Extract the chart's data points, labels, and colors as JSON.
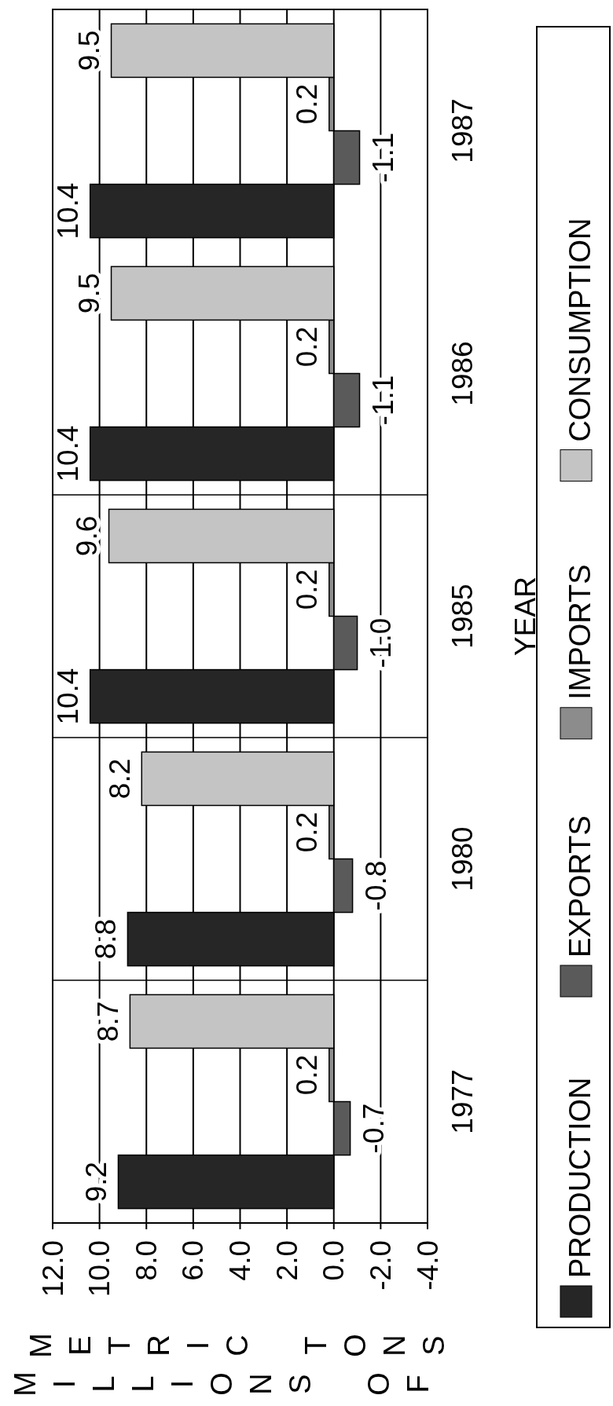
{
  "chart_data": {
    "type": "bar",
    "orientation": "horizontal",
    "ylabel": "YEAR",
    "xlabel": "MILLIONS OF METRIC TONS",
    "categories": [
      "1987",
      "1986",
      "1985",
      "1980",
      "1977"
    ],
    "series": [
      {
        "name": "PRODUCTION",
        "color": "#262626",
        "values": [
          10.4,
          10.4,
          10.4,
          8.8,
          9.2
        ],
        "value_labels": [
          "10.4",
          "10.4",
          "10.4",
          "8.8",
          "9.2"
        ]
      },
      {
        "name": "EXPORTS",
        "color": "#5a5a5a",
        "values": [
          -1.1,
          -1.1,
          -1.0,
          -0.8,
          -0.7
        ],
        "value_labels": [
          "-1.1",
          "-1.1",
          "-1.0",
          "-0.8",
          "-0.7"
        ]
      },
      {
        "name": "IMPORTS",
        "color": "#8c8c8c",
        "values": [
          0.2,
          0.2,
          0.2,
          0.2,
          0.2
        ],
        "value_labels": [
          "0.2",
          "0.2",
          "0.2",
          "0.2",
          "0.2"
        ]
      },
      {
        "name": "CONSUMPTION",
        "color": "#c4c4c4",
        "values": [
          9.5,
          9.5,
          9.6,
          8.2,
          8.7
        ],
        "value_labels": [
          "9.5",
          "9.5",
          "9.6",
          "8.2",
          "8.7"
        ]
      }
    ],
    "xlim": [
      12,
      -4
    ],
    "xticks": [
      {
        "value": 12,
        "label": "12.0"
      },
      {
        "value": 10,
        "label": "10.0"
      },
      {
        "value": 8,
        "label": "8.0"
      },
      {
        "value": 6,
        "label": "6.0"
      },
      {
        "value": 4,
        "label": "4.0"
      },
      {
        "value": 2,
        "label": "2.0"
      },
      {
        "value": 0,
        "label": "0.0"
      },
      {
        "value": -2,
        "label": "-2.0"
      },
      {
        "value": -4,
        "label": "-4.0"
      }
    ],
    "grid": true,
    "legend": "right"
  }
}
